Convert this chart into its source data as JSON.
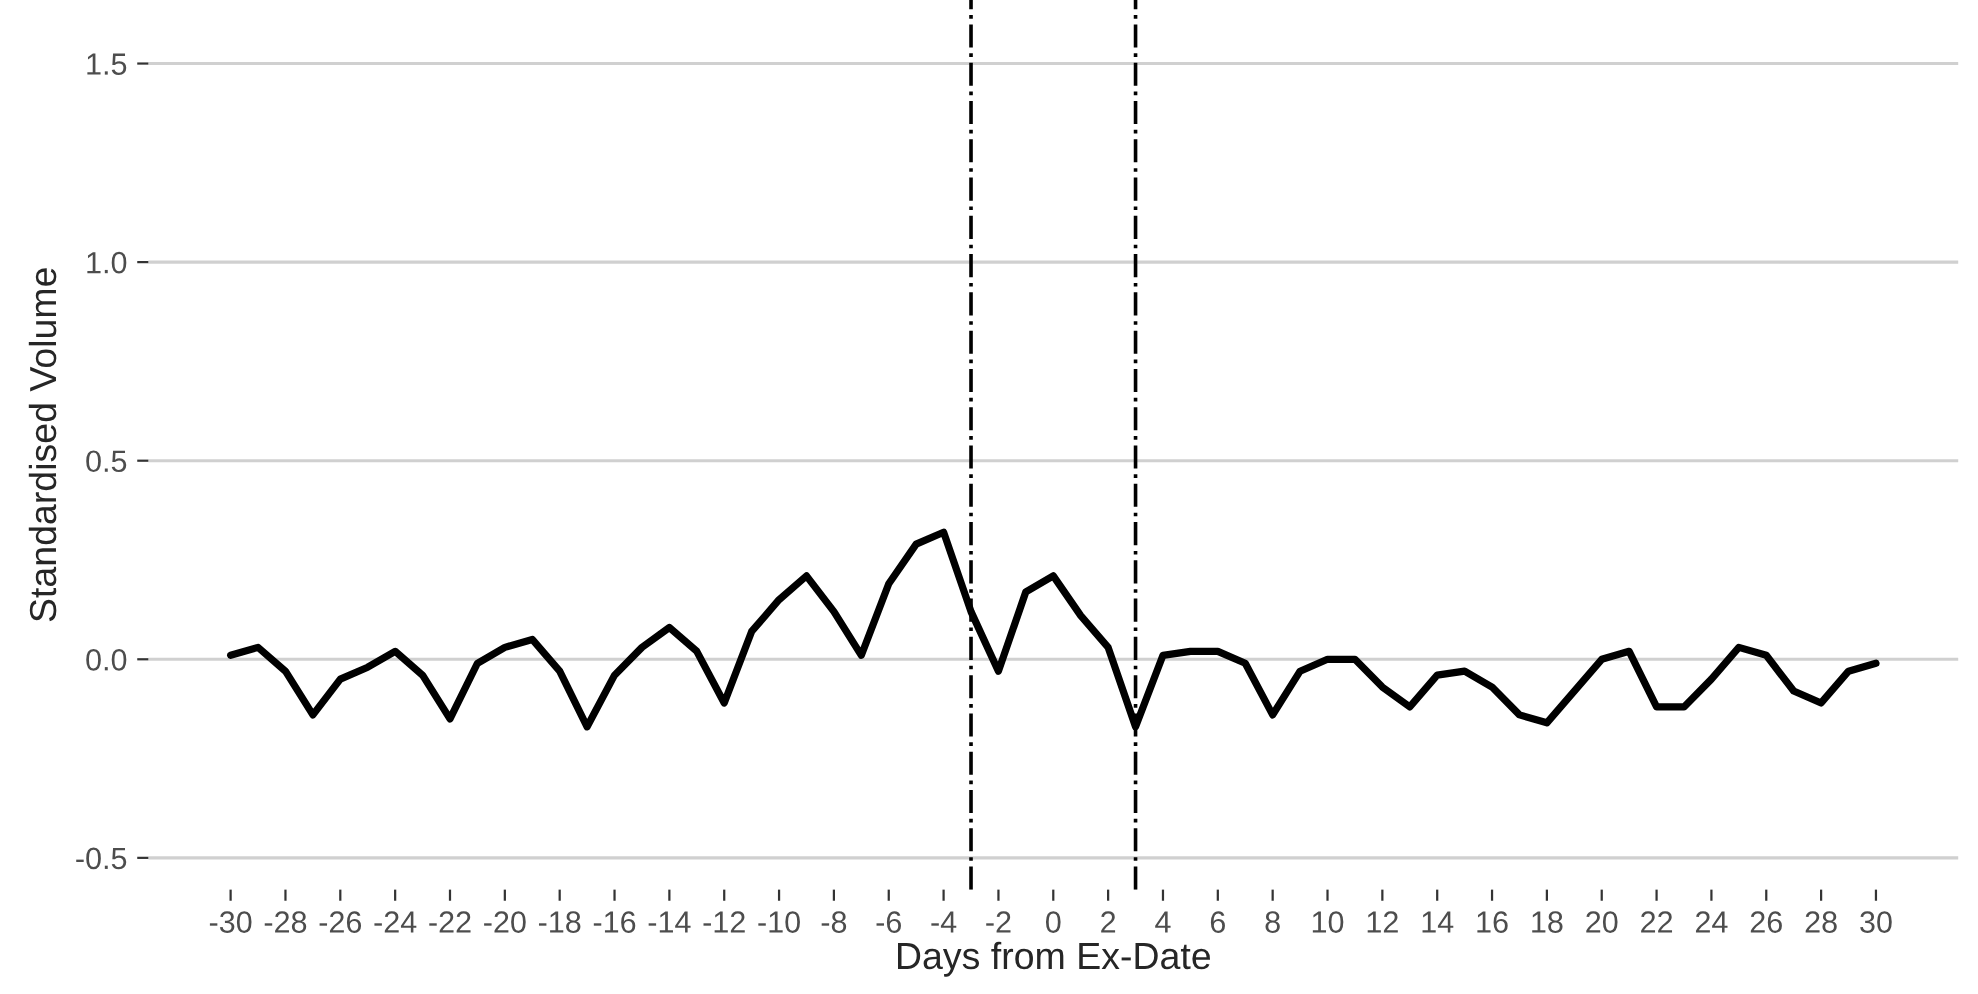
{
  "chart_data": {
    "type": "line",
    "xlabel": "Days from Ex-Date",
    "ylabel": "Standardised Volume",
    "x": [
      -30,
      -29,
      -28,
      -27,
      -26,
      -25,
      -24,
      -23,
      -22,
      -21,
      -20,
      -19,
      -18,
      -17,
      -16,
      -15,
      -14,
      -13,
      -12,
      -11,
      -10,
      -9,
      -8,
      -7,
      -6,
      -5,
      -4,
      -3,
      -2,
      -1,
      0,
      1,
      2,
      3,
      4,
      5,
      6,
      7,
      8,
      9,
      10,
      11,
      12,
      13,
      14,
      15,
      16,
      17,
      18,
      19,
      20,
      21,
      22,
      23,
      24,
      25,
      26,
      27,
      28,
      29,
      30
    ],
    "series": [
      {
        "color": "#000000",
        "values": [
          0.01,
          0.03,
          -0.03,
          -0.14,
          -0.05,
          -0.02,
          0.02,
          -0.04,
          -0.15,
          -0.01,
          0.03,
          0.05,
          -0.03,
          -0.17,
          -0.04,
          0.03,
          0.08,
          0.02,
          -0.11,
          0.07,
          0.15,
          0.21,
          0.12,
          0.01,
          0.19,
          0.29,
          0.32,
          0.12,
          -0.03,
          0.17,
          0.21,
          0.11,
          0.03,
          -0.17,
          0.01,
          0.02,
          0.02,
          -0.01,
          -0.14,
          -0.03,
          0.0,
          0.0,
          -0.07,
          -0.12,
          -0.04,
          -0.03,
          -0.07,
          -0.14,
          -0.16,
          -0.08,
          0.0,
          0.02,
          -0.12,
          -0.12,
          -0.05,
          0.03,
          0.01,
          -0.08,
          -0.11,
          -0.03,
          -0.01
        ]
      }
    ],
    "xlim": [
      -33,
      33
    ],
    "xticks": [
      -30,
      -28,
      -26,
      -24,
      -22,
      -20,
      -18,
      -16,
      -14,
      -12,
      -10,
      -8,
      -6,
      -4,
      -2,
      0,
      2,
      4,
      6,
      8,
      10,
      12,
      14,
      16,
      18,
      20,
      22,
      24,
      26,
      28,
      30
    ],
    "ylim": [
      -0.58,
      1.66
    ],
    "yticks": [
      {
        "value": -0.5,
        "label": "-0.5"
      },
      {
        "value": 0,
        "label": "0.0"
      },
      {
        "value": 0.5,
        "label": "0.5"
      },
      {
        "value": 1.0,
        "label": "1.0"
      },
      {
        "value": 1.5,
        "label": "1.5"
      }
    ],
    "ref_lines": [
      {
        "axis": "x",
        "value": -3,
        "color": "#000000",
        "line_style": "dashdot"
      },
      {
        "axis": "x",
        "value": 3,
        "color": "#000000",
        "line_style": "dashdot"
      }
    ],
    "grid": "y",
    "legend": false,
    "marker": "none",
    "line_style": "solid"
  }
}
